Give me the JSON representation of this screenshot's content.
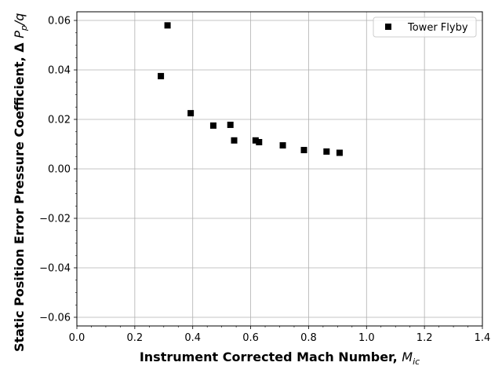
{
  "chart_data": {
    "type": "scatter",
    "xlabel": "Instrument Corrected Mach Number, ",
    "xlabel_math": "M",
    "xlabel_sub": "ic",
    "ylabel": "Static Position Error Pressure Coefficient, Δ ",
    "ylabel_math": "P",
    "ylabel_sub": "p",
    "ylabel_tail": "/q",
    "xlim": [
      0.0,
      1.4
    ],
    "ylim": [
      -0.0635,
      0.0635
    ],
    "x_ticks": [
      0.0,
      0.2,
      0.4,
      0.6,
      0.8,
      1.0,
      1.2,
      1.4
    ],
    "x_tick_labels": [
      "0.0",
      "0.2",
      "0.4",
      "0.6",
      "0.8",
      "1.0",
      "1.2",
      "1.4"
    ],
    "y_ticks": [
      0.06,
      0.04,
      0.02,
      0.0,
      -0.02,
      -0.04,
      -0.06
    ],
    "y_tick_labels": [
      "0.06",
      "0.04",
      "0.02",
      "0.00",
      "−0.02",
      "−0.04",
      "−0.06"
    ],
    "grid": true,
    "legend_position": "top-right",
    "series": [
      {
        "name": "Tower Flyby",
        "marker": "square",
        "color": "#000000",
        "x": [
          0.29,
          0.313,
          0.393,
          0.471,
          0.53,
          0.543,
          0.617,
          0.629,
          0.711,
          0.784,
          0.862,
          0.907
        ],
        "y": [
          0.0375,
          0.058,
          0.0225,
          0.0175,
          0.0178,
          0.0115,
          0.0115,
          0.0108,
          0.0095,
          0.0076,
          0.007,
          0.0065
        ]
      }
    ]
  }
}
